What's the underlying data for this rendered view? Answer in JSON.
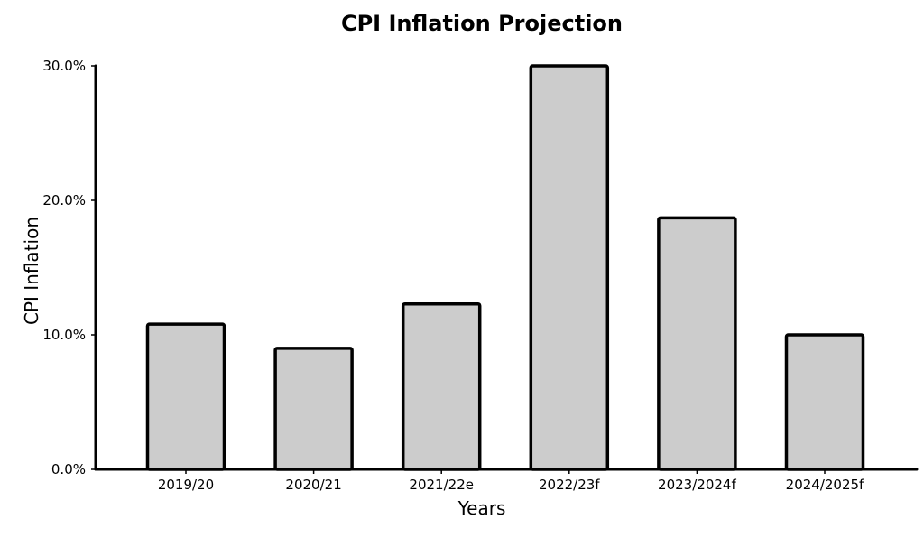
{
  "chart_data": {
    "type": "bar",
    "title": "CPI Inflation Projection",
    "xlabel": "Years",
    "ylabel": "CPI Inflation",
    "categories": [
      "2019/20",
      "2020/21",
      "2021/22e",
      "2022/23f",
      "2023/2024f",
      "2024/2025f"
    ],
    "values": [
      10.8,
      9.0,
      12.3,
      30.0,
      18.7,
      10.0
    ],
    "ylim": [
      0,
      30
    ],
    "yticks": [
      0,
      10,
      20,
      30
    ],
    "ytick_labels": [
      "0.0%",
      "10.0%",
      "20.0%",
      "30.0%"
    ],
    "grid": false,
    "bar_color": "#cccccc",
    "edge_color": "#000000"
  }
}
